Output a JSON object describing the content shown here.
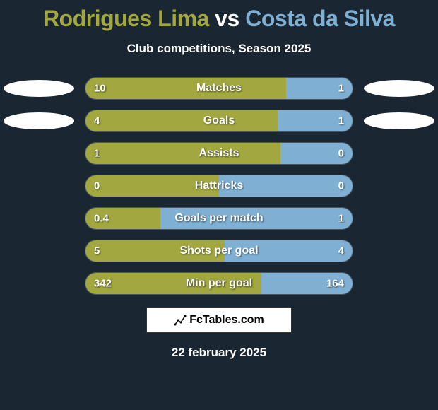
{
  "title": {
    "player_a": "Rodrigues Lima",
    "vs": "vs",
    "player_b": "Costa da Silva"
  },
  "subtitle": "Club competitions, Season 2025",
  "colors": {
    "player_a": "#a2a83f",
    "player_b": "#7fb0d4",
    "background": "#1a2632"
  },
  "stats": [
    {
      "label": "Matches",
      "left_value": "10",
      "right_value": "1",
      "left_pct": 75,
      "show_badges": true
    },
    {
      "label": "Goals",
      "left_value": "4",
      "right_value": "1",
      "left_pct": 72,
      "show_badges": true
    },
    {
      "label": "Assists",
      "left_value": "1",
      "right_value": "0",
      "left_pct": 73,
      "show_badges": false
    },
    {
      "label": "Hattricks",
      "left_value": "0",
      "right_value": "0",
      "left_pct": 50,
      "show_badges": false
    },
    {
      "label": "Goals per match",
      "left_value": "0.4",
      "right_value": "1",
      "left_pct": 28,
      "show_badges": false
    },
    {
      "label": "Shots per goal",
      "left_value": "5",
      "right_value": "4",
      "left_pct": 52,
      "show_badges": false
    },
    {
      "label": "Min per goal",
      "left_value": "342",
      "right_value": "164",
      "left_pct": 66,
      "show_badges": false
    }
  ],
  "footer": "FcTables.com",
  "date": "22 february 2025"
}
